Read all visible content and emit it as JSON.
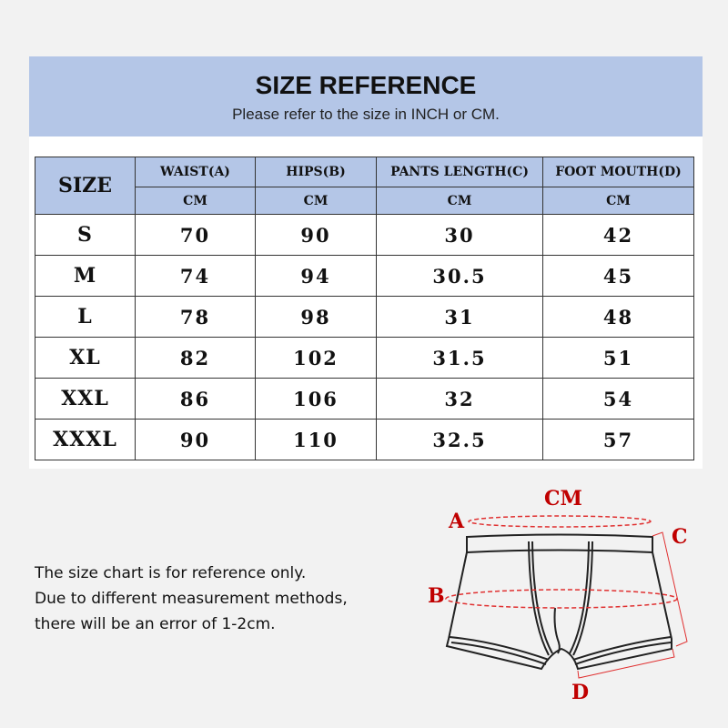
{
  "header": {
    "title": "SIZE REFERENCE",
    "subtitle": "Please refer to the size in INCH or CM."
  },
  "table": {
    "size_header": "SIZE",
    "columns": [
      {
        "label": "WAIST(A)",
        "unit": "CM"
      },
      {
        "label": "HIPS(B)",
        "unit": "CM"
      },
      {
        "label": "PANTS LENGTH(C)",
        "unit": "CM"
      },
      {
        "label": "FOOT MOUTH(D)",
        "unit": "CM"
      }
    ],
    "rows": [
      {
        "size": "S",
        "values": [
          "70",
          "90",
          "30",
          "42"
        ]
      },
      {
        "size": "M",
        "values": [
          "74",
          "94",
          "30.5",
          "45"
        ]
      },
      {
        "size": "L",
        "values": [
          "78",
          "98",
          "31",
          "48"
        ]
      },
      {
        "size": "XL",
        "values": [
          "82",
          "102",
          "31.5",
          "51"
        ]
      },
      {
        "size": "XXL",
        "values": [
          "86",
          "106",
          "32",
          "54"
        ]
      },
      {
        "size": "XXXL",
        "values": [
          "90",
          "110",
          "32.5",
          "57"
        ]
      }
    ]
  },
  "note": {
    "lines": [
      "The size chart is for reference only.",
      "Due to different measurement methods,",
      "there will be an error of 1-2cm."
    ]
  },
  "diagram": {
    "unit": "CM",
    "labels": {
      "a": "A",
      "b": "B",
      "c": "C",
      "d": "D"
    },
    "accent_color": "#c00000",
    "header_color": "#b4c6e7"
  }
}
